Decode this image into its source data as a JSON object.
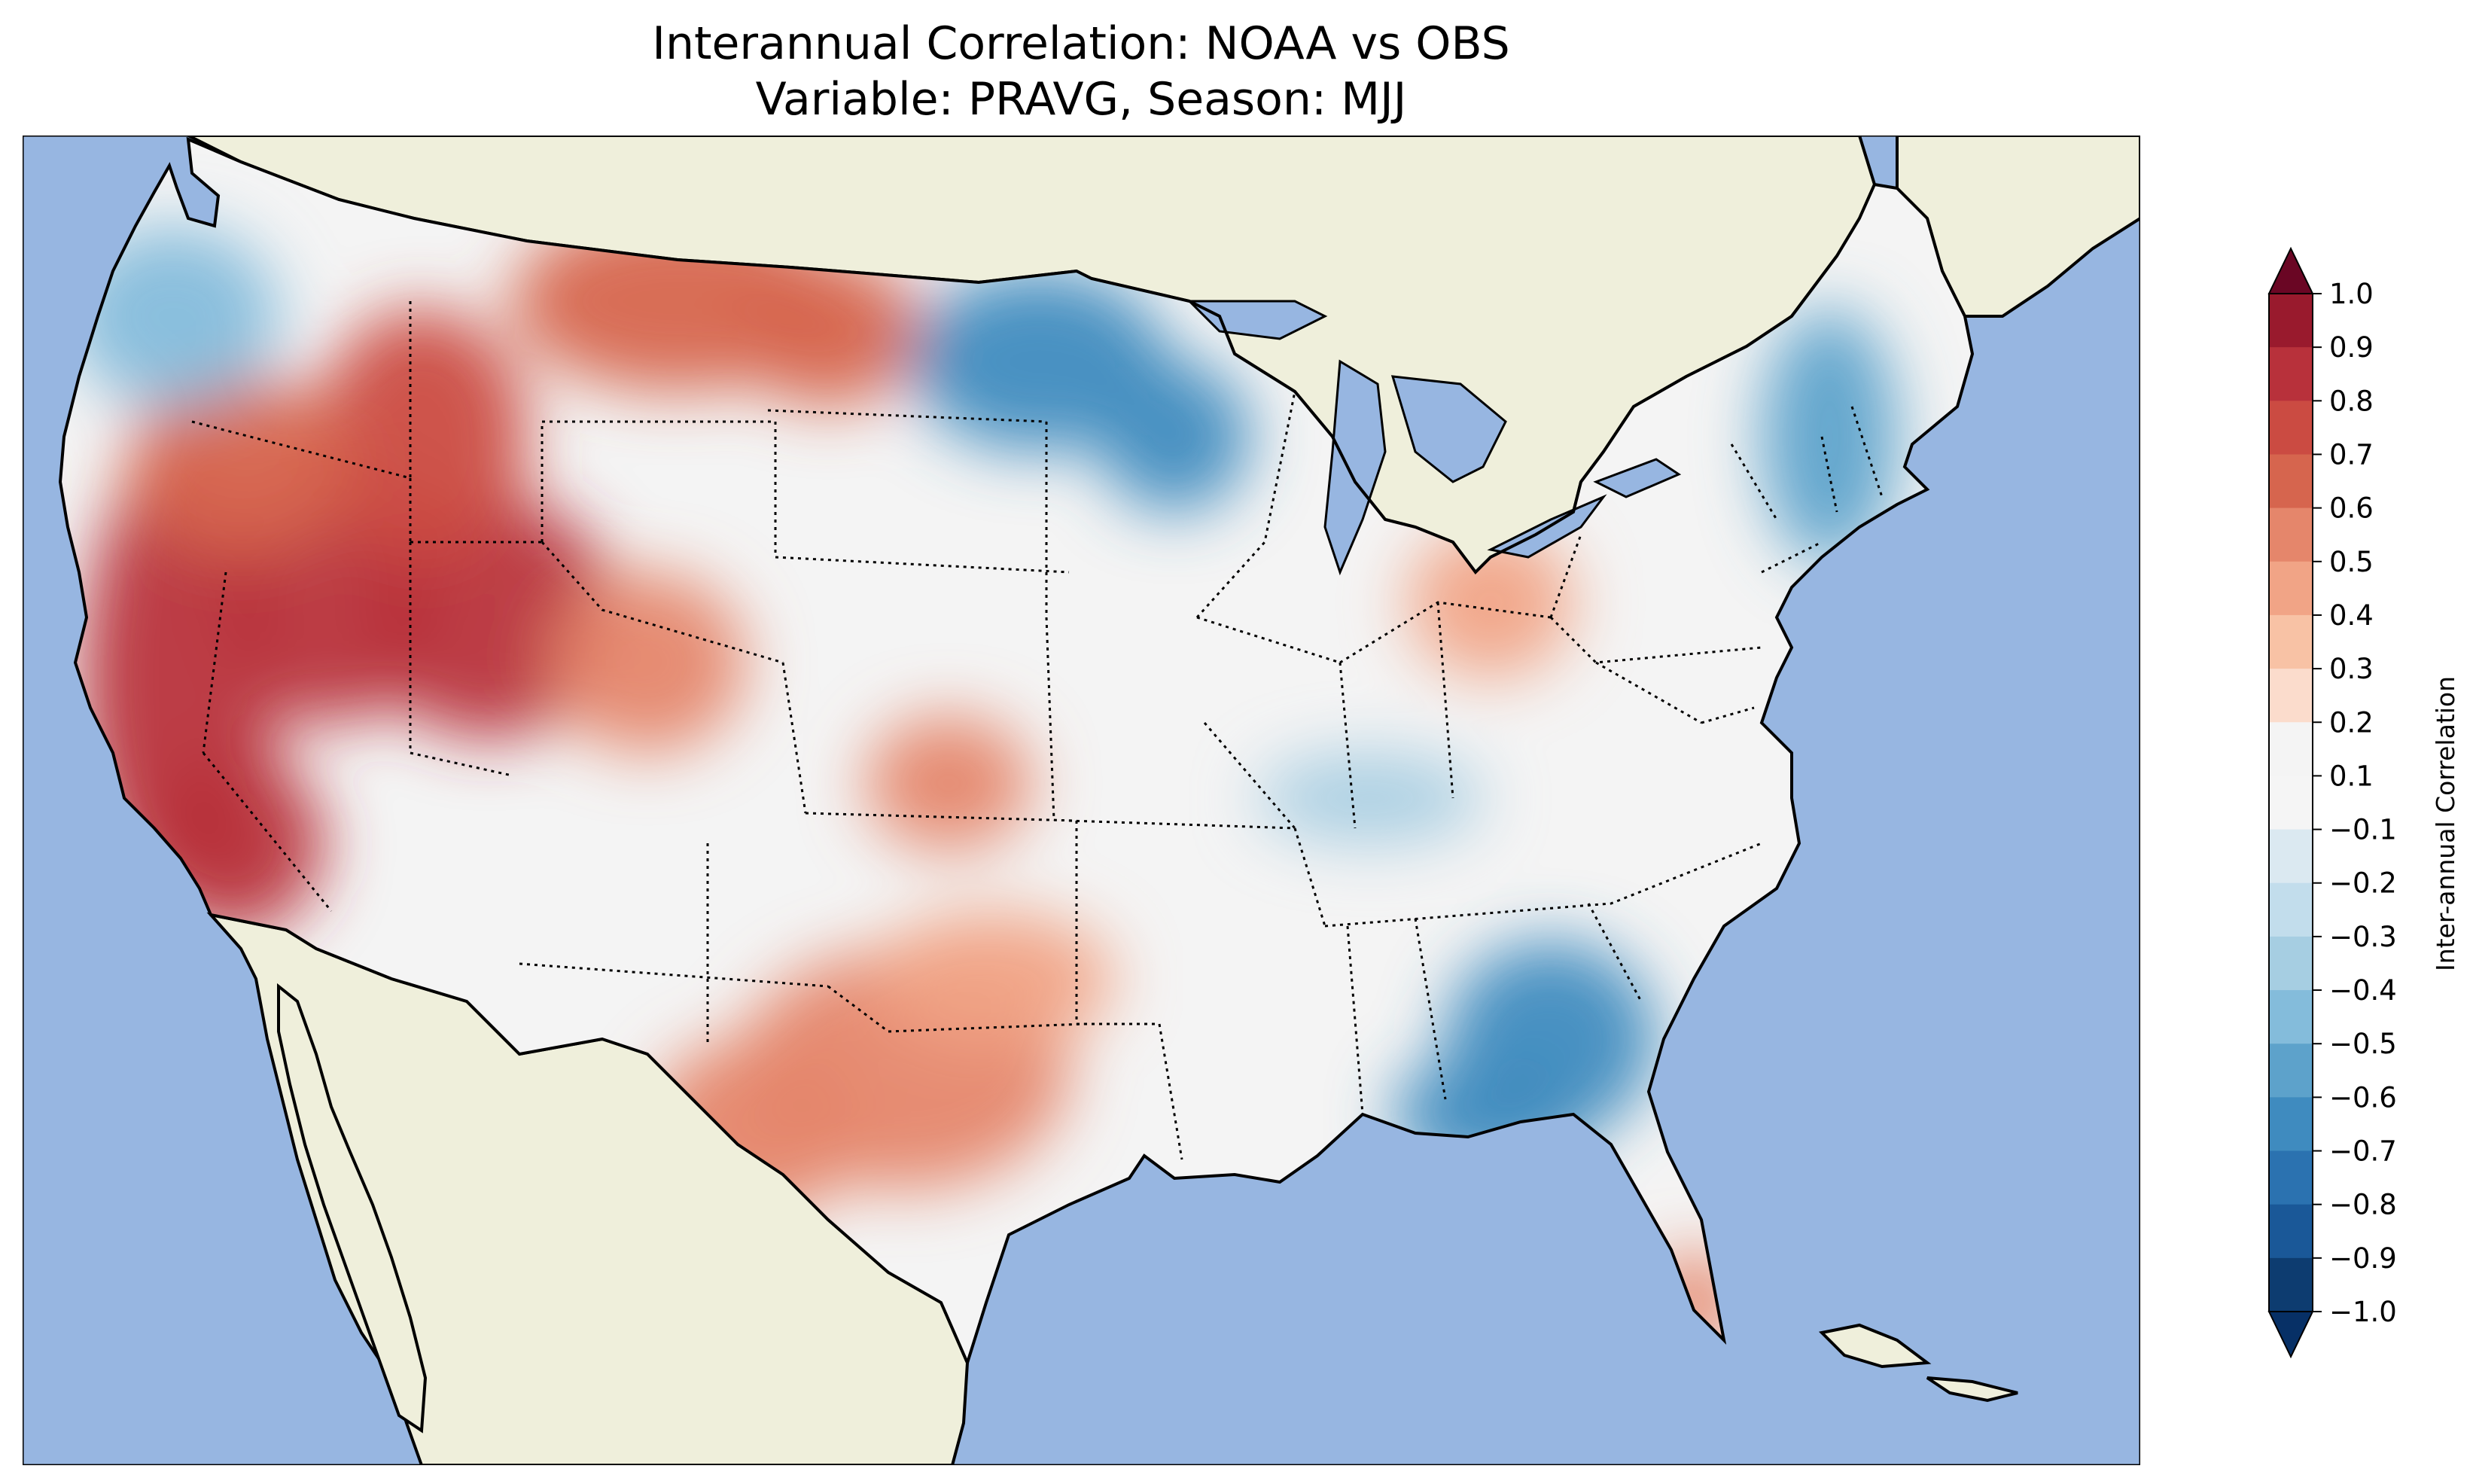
{
  "figure": {
    "title_line_1": "Interannual Correlation: NOAA vs OBS",
    "title_line_2": "Variable: PRAVG, Season: MJJ"
  },
  "colors": {
    "ocean": "#97b6e1",
    "land": "#efefdb",
    "lakes": "#97b6e1",
    "coastline": "#000000",
    "state_borders": "#000000"
  },
  "map": {
    "region": "Contiguous United States",
    "quantity": "Inter-annual Correlation",
    "field_hotspots": [
      {
        "area": "California",
        "value": 0.8
      },
      {
        "area": "Nevada",
        "value": 0.8
      },
      {
        "area": "Utah",
        "value": 0.85
      },
      {
        "area": "Idaho",
        "value": 0.7
      },
      {
        "area": "Montana",
        "value": 0.6
      },
      {
        "area": "Oregon",
        "value": 0.6
      },
      {
        "area": "Colorado",
        "value": 0.5
      },
      {
        "area": "Texas",
        "value": 0.5
      },
      {
        "area": "Oklahoma",
        "value": 0.4
      },
      {
        "area": "Kansas",
        "value": 0.5
      },
      {
        "area": "Ohio",
        "value": 0.4
      },
      {
        "area": "South Florida",
        "value": 0.5
      },
      {
        "area": "Washington",
        "value": -0.4
      },
      {
        "area": "Minnesota",
        "value": -0.6
      },
      {
        "area": "New England",
        "value": -0.5
      },
      {
        "area": "Georgia",
        "value": -0.6
      },
      {
        "area": "North Florida",
        "value": -0.6
      },
      {
        "area": "Kentucky",
        "value": -0.3
      }
    ]
  },
  "chart_data": {
    "type": "heatmap",
    "title": "Interannual Correlation: NOAA vs OBS",
    "subtitle": "Variable: PRAVG, Season: MJJ",
    "variable": "PRAVG",
    "season": "MJJ",
    "colorbar": {
      "label": "Inter-annual Correlation",
      "range": [
        -1.0,
        1.0
      ],
      "extend": "both",
      "colormap": "RdBu_r",
      "ticks": [
        1.0,
        0.9,
        0.8,
        0.7,
        0.6,
        0.5,
        0.4,
        0.3,
        0.2,
        0.1,
        -0.1,
        -0.2,
        -0.3,
        -0.4,
        -0.5,
        -0.6,
        -0.7,
        -0.8,
        -0.9,
        -1.0
      ],
      "tick_labels": [
        "1.0",
        "0.9",
        "0.8",
        "0.7",
        "0.6",
        "0.5",
        "0.4",
        "0.3",
        "0.2",
        "0.1",
        "−0.1",
        "−0.2",
        "−0.3",
        "−0.4",
        "−0.5",
        "−0.6",
        "−0.7",
        "−0.8",
        "−0.9",
        "−1.0"
      ],
      "band_colors": [
        "#6a0624",
        "#991a2d",
        "#b8313b",
        "#cb4b42",
        "#d6654e",
        "#e5866b",
        "#f1a486",
        "#f8c2a5",
        "#fbdccc",
        "#f4f4f4",
        "#f5f5f5",
        "#dbe9f1",
        "#c2ddec",
        "#a6cee2",
        "#84bcdb",
        "#5da2cb",
        "#3f8bbf",
        "#2b72b0",
        "#1a5898",
        "#0d3c70",
        "#073066"
      ]
    }
  }
}
